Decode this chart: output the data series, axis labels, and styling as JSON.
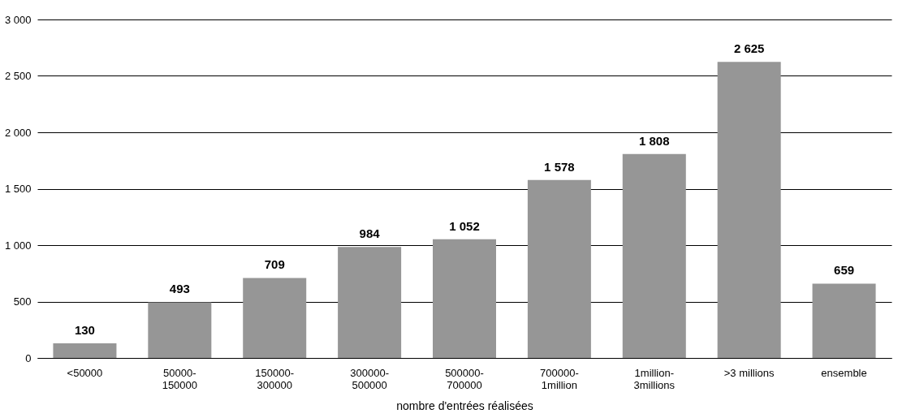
{
  "chart_data": {
    "type": "bar",
    "xlabel": "nombre d'entrées réalisées",
    "categories": [
      "<50000",
      "50000-150000",
      "150000-300000",
      "300000-500000",
      "500000-700000",
      "700000-1million",
      "1million-3millions",
      ">3 millions",
      "ensemble"
    ],
    "values": [
      130,
      493,
      709,
      984,
      1052,
      1578,
      1808,
      2625,
      659
    ],
    "value_labels": [
      "130",
      "493",
      "709",
      "984",
      "1 052",
      "1 578",
      "1 808",
      "2 625",
      "659"
    ],
    "color": "#969696",
    "ylim": [
      0,
      3000
    ],
    "yticks": [
      0,
      500,
      {
        "value": 1000,
        "label": "1 000"
      },
      {
        "value": 1500,
        "label": "1 500"
      },
      {
        "value": 2000,
        "label": "2 000"
      },
      {
        "value": 2500,
        "label": "2 500"
      },
      {
        "value": 3000,
        "label": "3 000"
      }
    ],
    "grid": "y"
  }
}
